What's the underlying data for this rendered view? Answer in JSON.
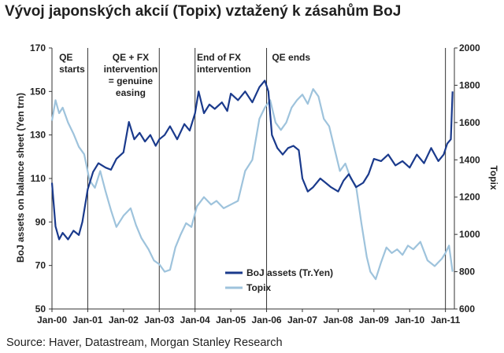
{
  "title": "Vývoj japonských akcií (Topix) vztažený k zásahům BoJ",
  "source": "Source: Haver, Datastream, Morgan Stanley Research",
  "colors": {
    "boj": "#1a3a8c",
    "topix": "#9ec3dc",
    "vline": "#333333",
    "axis": "#333333"
  },
  "chart_data": {
    "type": "line",
    "title": "",
    "xlabel": "",
    "ylabel": "BoJ assets on balance sheet (Yen trn)",
    "y2label": "Topix",
    "xlim": [
      2000.0,
      2011.25
    ],
    "ylim": [
      50,
      170
    ],
    "y2lim": [
      600,
      2000
    ],
    "grid": false,
    "legend_position": "bottom-center",
    "x_ticks": [
      {
        "x": 2000.0,
        "label": "Jan-00"
      },
      {
        "x": 2001.0,
        "label": "Jan-01"
      },
      {
        "x": 2002.0,
        "label": "Jan-02"
      },
      {
        "x": 2003.0,
        "label": "Jan-03"
      },
      {
        "x": 2004.0,
        "label": "Jan-04"
      },
      {
        "x": 2005.0,
        "label": "Jan-05"
      },
      {
        "x": 2006.0,
        "label": "Jan-06"
      },
      {
        "x": 2007.0,
        "label": "Jan-07"
      },
      {
        "x": 2008.0,
        "label": "Jan-08"
      },
      {
        "x": 2009.0,
        "label": "Jan-09"
      },
      {
        "x": 2010.0,
        "label": "Jan-10"
      },
      {
        "x": 2011.0,
        "label": "Jan-11"
      }
    ],
    "y_ticks": [
      50,
      70,
      90,
      110,
      130,
      150,
      170
    ],
    "y2_ticks": [
      600,
      800,
      1000,
      1200,
      1400,
      1600,
      1800,
      2000
    ],
    "vlines": [
      2001.0,
      2003.0,
      2004.0,
      2006.0,
      2011.0
    ],
    "annotations": [
      {
        "x": 2000.2,
        "lines": [
          "QE",
          "starts"
        ],
        "align": "start"
      },
      {
        "x": 2002.2,
        "lines": [
          "QE + FX",
          "intervention",
          "= genuine",
          "easing"
        ],
        "align": "middle"
      },
      {
        "x": 2004.05,
        "lines": [
          "End of FX",
          "intervention"
        ],
        "align": "start"
      },
      {
        "x": 2006.15,
        "lines": [
          "QE ends"
        ],
        "align": "start"
      }
    ],
    "series": [
      {
        "name": "BoJ assets (Tr.Yen)",
        "axis": "left",
        "x": [
          2000.0,
          2000.1,
          2000.2,
          2000.3,
          2000.45,
          2000.6,
          2000.75,
          2000.85,
          2001.0,
          2001.15,
          2001.3,
          2001.5,
          2001.65,
          2001.8,
          2002.0,
          2002.15,
          2002.3,
          2002.45,
          2002.6,
          2002.75,
          2002.9,
          2003.0,
          2003.15,
          2003.3,
          2003.5,
          2003.7,
          2003.85,
          2004.0,
          2004.1,
          2004.25,
          2004.4,
          2004.55,
          2004.75,
          2004.9,
          2005.0,
          2005.2,
          2005.4,
          2005.6,
          2005.8,
          2005.95,
          2006.05,
          2006.15,
          2006.3,
          2006.45,
          2006.6,
          2006.75,
          2006.9,
          2007.0,
          2007.15,
          2007.3,
          2007.5,
          2007.65,
          2007.8,
          2008.0,
          2008.15,
          2008.3,
          2008.5,
          2008.7,
          2008.85,
          2009.0,
          2009.2,
          2009.4,
          2009.6,
          2009.8,
          2010.0,
          2010.2,
          2010.4,
          2010.6,
          2010.8,
          2010.95,
          2011.05,
          2011.15,
          2011.2
        ],
        "values": [
          108,
          88,
          82,
          85,
          82,
          86,
          84,
          90,
          105,
          113,
          117,
          115,
          114,
          119,
          122,
          136,
          128,
          131,
          127,
          130,
          125,
          128,
          130,
          134,
          128,
          135,
          132,
          140,
          150,
          140,
          144,
          142,
          145,
          141,
          149,
          146,
          150,
          145,
          152,
          155,
          150,
          130,
          124,
          121,
          124,
          125,
          123,
          110,
          104,
          106,
          110,
          108,
          106,
          104,
          109,
          112,
          106,
          108,
          112,
          119,
          118,
          121,
          116,
          118,
          115,
          121,
          117,
          124,
          118,
          121,
          126,
          128,
          150
        ]
      },
      {
        "name": "Topix",
        "axis": "right",
        "x": [
          2000.0,
          2000.1,
          2000.2,
          2000.3,
          2000.45,
          2000.6,
          2000.75,
          2000.9,
          2001.05,
          2001.2,
          2001.35,
          2001.5,
          2001.65,
          2001.8,
          2002.0,
          2002.2,
          2002.35,
          2002.5,
          2002.7,
          2002.85,
          2003.0,
          2003.15,
          2003.3,
          2003.45,
          2003.6,
          2003.75,
          2003.9,
          2004.05,
          2004.25,
          2004.45,
          2004.6,
          2004.8,
          2005.0,
          2005.2,
          2005.4,
          2005.6,
          2005.8,
          2005.95,
          2006.1,
          2006.25,
          2006.4,
          2006.55,
          2006.7,
          2006.85,
          2007.0,
          2007.15,
          2007.3,
          2007.45,
          2007.6,
          2007.75,
          2007.9,
          2008.05,
          2008.2,
          2008.35,
          2008.5,
          2008.65,
          2008.8,
          2008.9,
          2009.05,
          2009.2,
          2009.35,
          2009.5,
          2009.65,
          2009.8,
          2009.95,
          2010.1,
          2010.3,
          2010.5,
          2010.7,
          2010.9,
          2011.0,
          2011.1,
          2011.2
        ],
        "values": [
          1610,
          1720,
          1650,
          1680,
          1600,
          1540,
          1470,
          1430,
          1290,
          1250,
          1340,
          1230,
          1130,
          1040,
          1100,
          1140,
          1050,
          980,
          920,
          860,
          840,
          800,
          810,
          930,
          1000,
          1060,
          1040,
          1150,
          1200,
          1160,
          1180,
          1140,
          1160,
          1180,
          1340,
          1400,
          1620,
          1680,
          1720,
          1600,
          1560,
          1600,
          1680,
          1720,
          1750,
          1700,
          1780,
          1740,
          1620,
          1580,
          1460,
          1340,
          1380,
          1300,
          1260,
          1060,
          880,
          800,
          760,
          850,
          930,
          900,
          920,
          890,
          940,
          920,
          960,
          860,
          830,
          870,
          900,
          940,
          800
        ]
      }
    ]
  }
}
